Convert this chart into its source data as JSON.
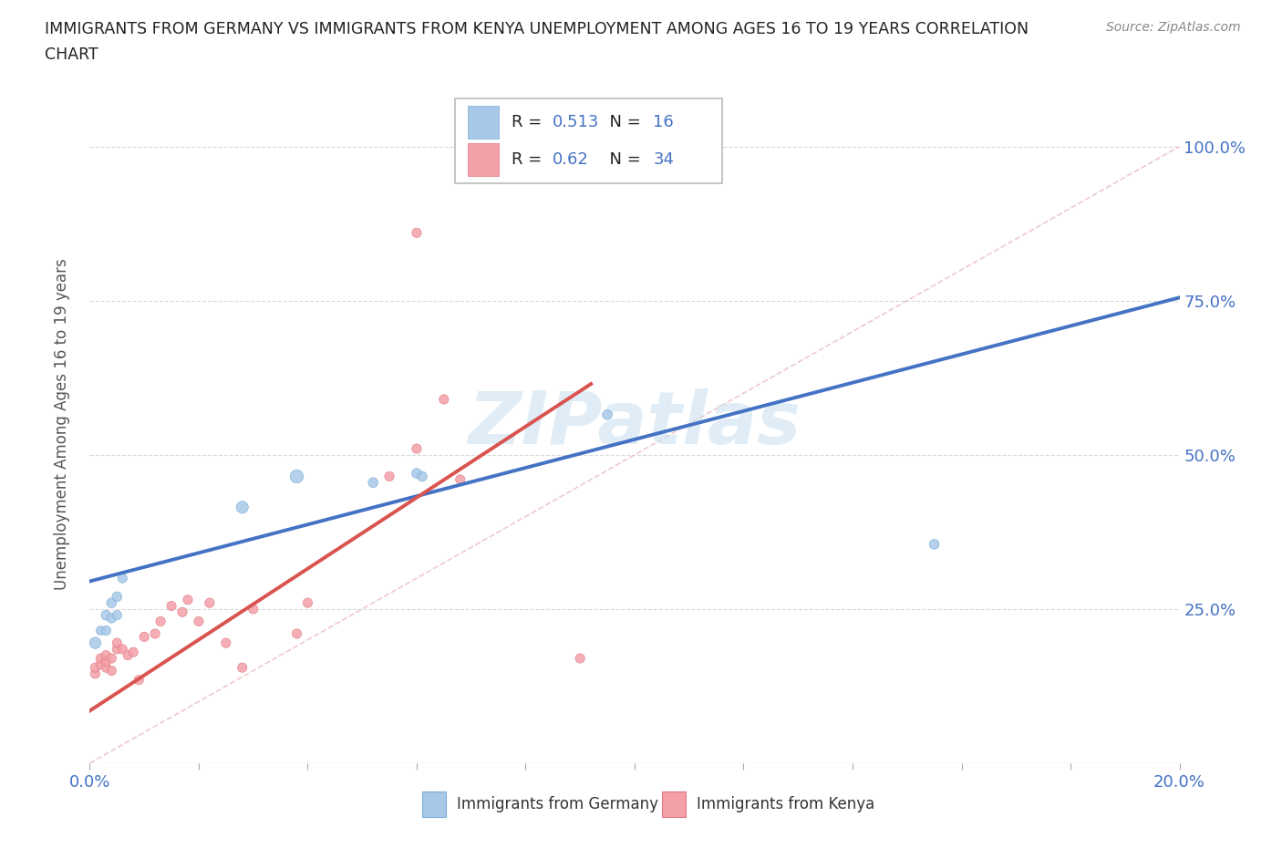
{
  "title_line1": "IMMIGRANTS FROM GERMANY VS IMMIGRANTS FROM KENYA UNEMPLOYMENT AMONG AGES 16 TO 19 YEARS CORRELATION",
  "title_line2": "CHART",
  "source": "Source: ZipAtlas.com",
  "ylabel": "Unemployment Among Ages 16 to 19 years",
  "germany_label": "Immigrants from Germany",
  "kenya_label": "Immigrants from Kenya",
  "r_germany": 0.513,
  "n_germany": 16,
  "r_kenya": 0.62,
  "n_kenya": 34,
  "germany_color": "#a8c8e8",
  "kenya_color": "#f4a0a8",
  "germany_trend_color": "#4472c4",
  "kenya_trend_color": "#d9534f",
  "xlim": [
    0.0,
    0.2
  ],
  "ylim": [
    0.0,
    1.1
  ],
  "yticks": [
    0.0,
    0.25,
    0.5,
    0.75,
    1.0
  ],
  "xticks": [
    0.0,
    0.02,
    0.04,
    0.06,
    0.08,
    0.1,
    0.12,
    0.14,
    0.16,
    0.18,
    0.2
  ],
  "germany_x": [
    0.001,
    0.002,
    0.003,
    0.003,
    0.004,
    0.004,
    0.005,
    0.005,
    0.006,
    0.028,
    0.038,
    0.052,
    0.06,
    0.061,
    0.095,
    0.155
  ],
  "germany_y": [
    0.195,
    0.215,
    0.215,
    0.24,
    0.235,
    0.26,
    0.24,
    0.27,
    0.3,
    0.415,
    0.465,
    0.455,
    0.47,
    0.465,
    0.565,
    0.355
  ],
  "germany_size": [
    80,
    50,
    55,
    60,
    55,
    60,
    55,
    60,
    55,
    90,
    110,
    60,
    60,
    60,
    60,
    60
  ],
  "kenya_x": [
    0.001,
    0.001,
    0.002,
    0.002,
    0.003,
    0.003,
    0.003,
    0.004,
    0.004,
    0.005,
    0.005,
    0.006,
    0.007,
    0.008,
    0.009,
    0.01,
    0.012,
    0.013,
    0.015,
    0.017,
    0.018,
    0.02,
    0.022,
    0.025,
    0.028,
    0.03,
    0.038,
    0.04,
    0.055,
    0.06,
    0.065,
    0.068,
    0.09,
    0.06
  ],
  "kenya_y": [
    0.145,
    0.155,
    0.16,
    0.17,
    0.155,
    0.165,
    0.175,
    0.15,
    0.17,
    0.185,
    0.195,
    0.185,
    0.175,
    0.18,
    0.135,
    0.205,
    0.21,
    0.23,
    0.255,
    0.245,
    0.265,
    0.23,
    0.26,
    0.195,
    0.155,
    0.25,
    0.21,
    0.26,
    0.465,
    0.51,
    0.59,
    0.46,
    0.17,
    0.86
  ],
  "kenya_size": [
    55,
    55,
    55,
    55,
    55,
    55,
    55,
    55,
    55,
    55,
    55,
    55,
    55,
    55,
    55,
    55,
    55,
    55,
    55,
    55,
    55,
    55,
    55,
    55,
    55,
    55,
    55,
    55,
    55,
    55,
    55,
    55,
    55,
    55
  ],
  "background_color": "#ffffff",
  "grid_color": "#d0d0d0",
  "watermark_text": "ZIPatlas",
  "watermark_color": "#c8dff0",
  "watermark_alpha": 0.55,
  "germany_trend_x": [
    0.0,
    0.2
  ],
  "germany_trend_y": [
    0.295,
    0.755
  ],
  "kenya_trend_x": [
    0.0,
    0.092
  ],
  "kenya_trend_y": [
    0.085,
    0.615
  ]
}
